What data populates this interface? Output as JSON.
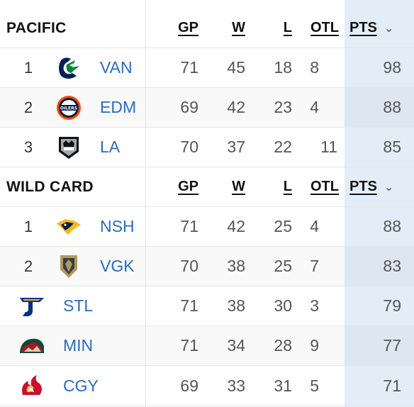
{
  "headers": {
    "gp": "GP",
    "w": "W",
    "l": "L",
    "otl": "OTL",
    "pts": "PTS"
  },
  "divisions": [
    {
      "title": "PACIFIC",
      "teams": [
        {
          "rank": "1",
          "abbr": "VAN",
          "logo": "canucks-logo-icon",
          "gp": "71",
          "w": "45",
          "l": "18",
          "otl": "8",
          "pts": "98"
        },
        {
          "rank": "2",
          "abbr": "EDM",
          "logo": "oilers-logo-icon",
          "gp": "69",
          "w": "42",
          "l": "23",
          "otl": "4",
          "pts": "88"
        },
        {
          "rank": "3",
          "abbr": "LA",
          "logo": "kings-logo-icon",
          "gp": "70",
          "w": "37",
          "l": "22",
          "otl": "11",
          "pts": "85"
        }
      ]
    },
    {
      "title": "WILD CARD",
      "teams": [
        {
          "rank": "1",
          "abbr": "NSH",
          "logo": "predators-logo-icon",
          "gp": "71",
          "w": "42",
          "l": "25",
          "otl": "4",
          "pts": "88"
        },
        {
          "rank": "2",
          "abbr": "VGK",
          "logo": "golden-knights-logo-icon",
          "gp": "70",
          "w": "38",
          "l": "25",
          "otl": "7",
          "pts": "83"
        },
        {
          "rank": "",
          "abbr": "STL",
          "logo": "blues-logo-icon",
          "gp": "71",
          "w": "38",
          "l": "30",
          "otl": "3",
          "pts": "79"
        },
        {
          "rank": "",
          "abbr": "MIN",
          "logo": "wild-logo-icon",
          "gp": "71",
          "w": "34",
          "l": "28",
          "otl": "9",
          "pts": "77"
        },
        {
          "rank": "",
          "abbr": "CGY",
          "logo": "flames-logo-icon",
          "gp": "69",
          "w": "33",
          "l": "31",
          "otl": "5",
          "pts": "71"
        }
      ]
    }
  ],
  "colors": {
    "link": "#2a6cb8",
    "pts_column_bg": "#e3edf7",
    "canucks_blue": "#00205b",
    "canucks_green": "#00843d",
    "oilers_orange": "#fc4c02",
    "oilers_blue": "#041e42",
    "vgk_gold": "#b4975a",
    "blues_blue": "#002f87",
    "wild_green": "#154734",
    "flames_red": "#c8102e"
  }
}
